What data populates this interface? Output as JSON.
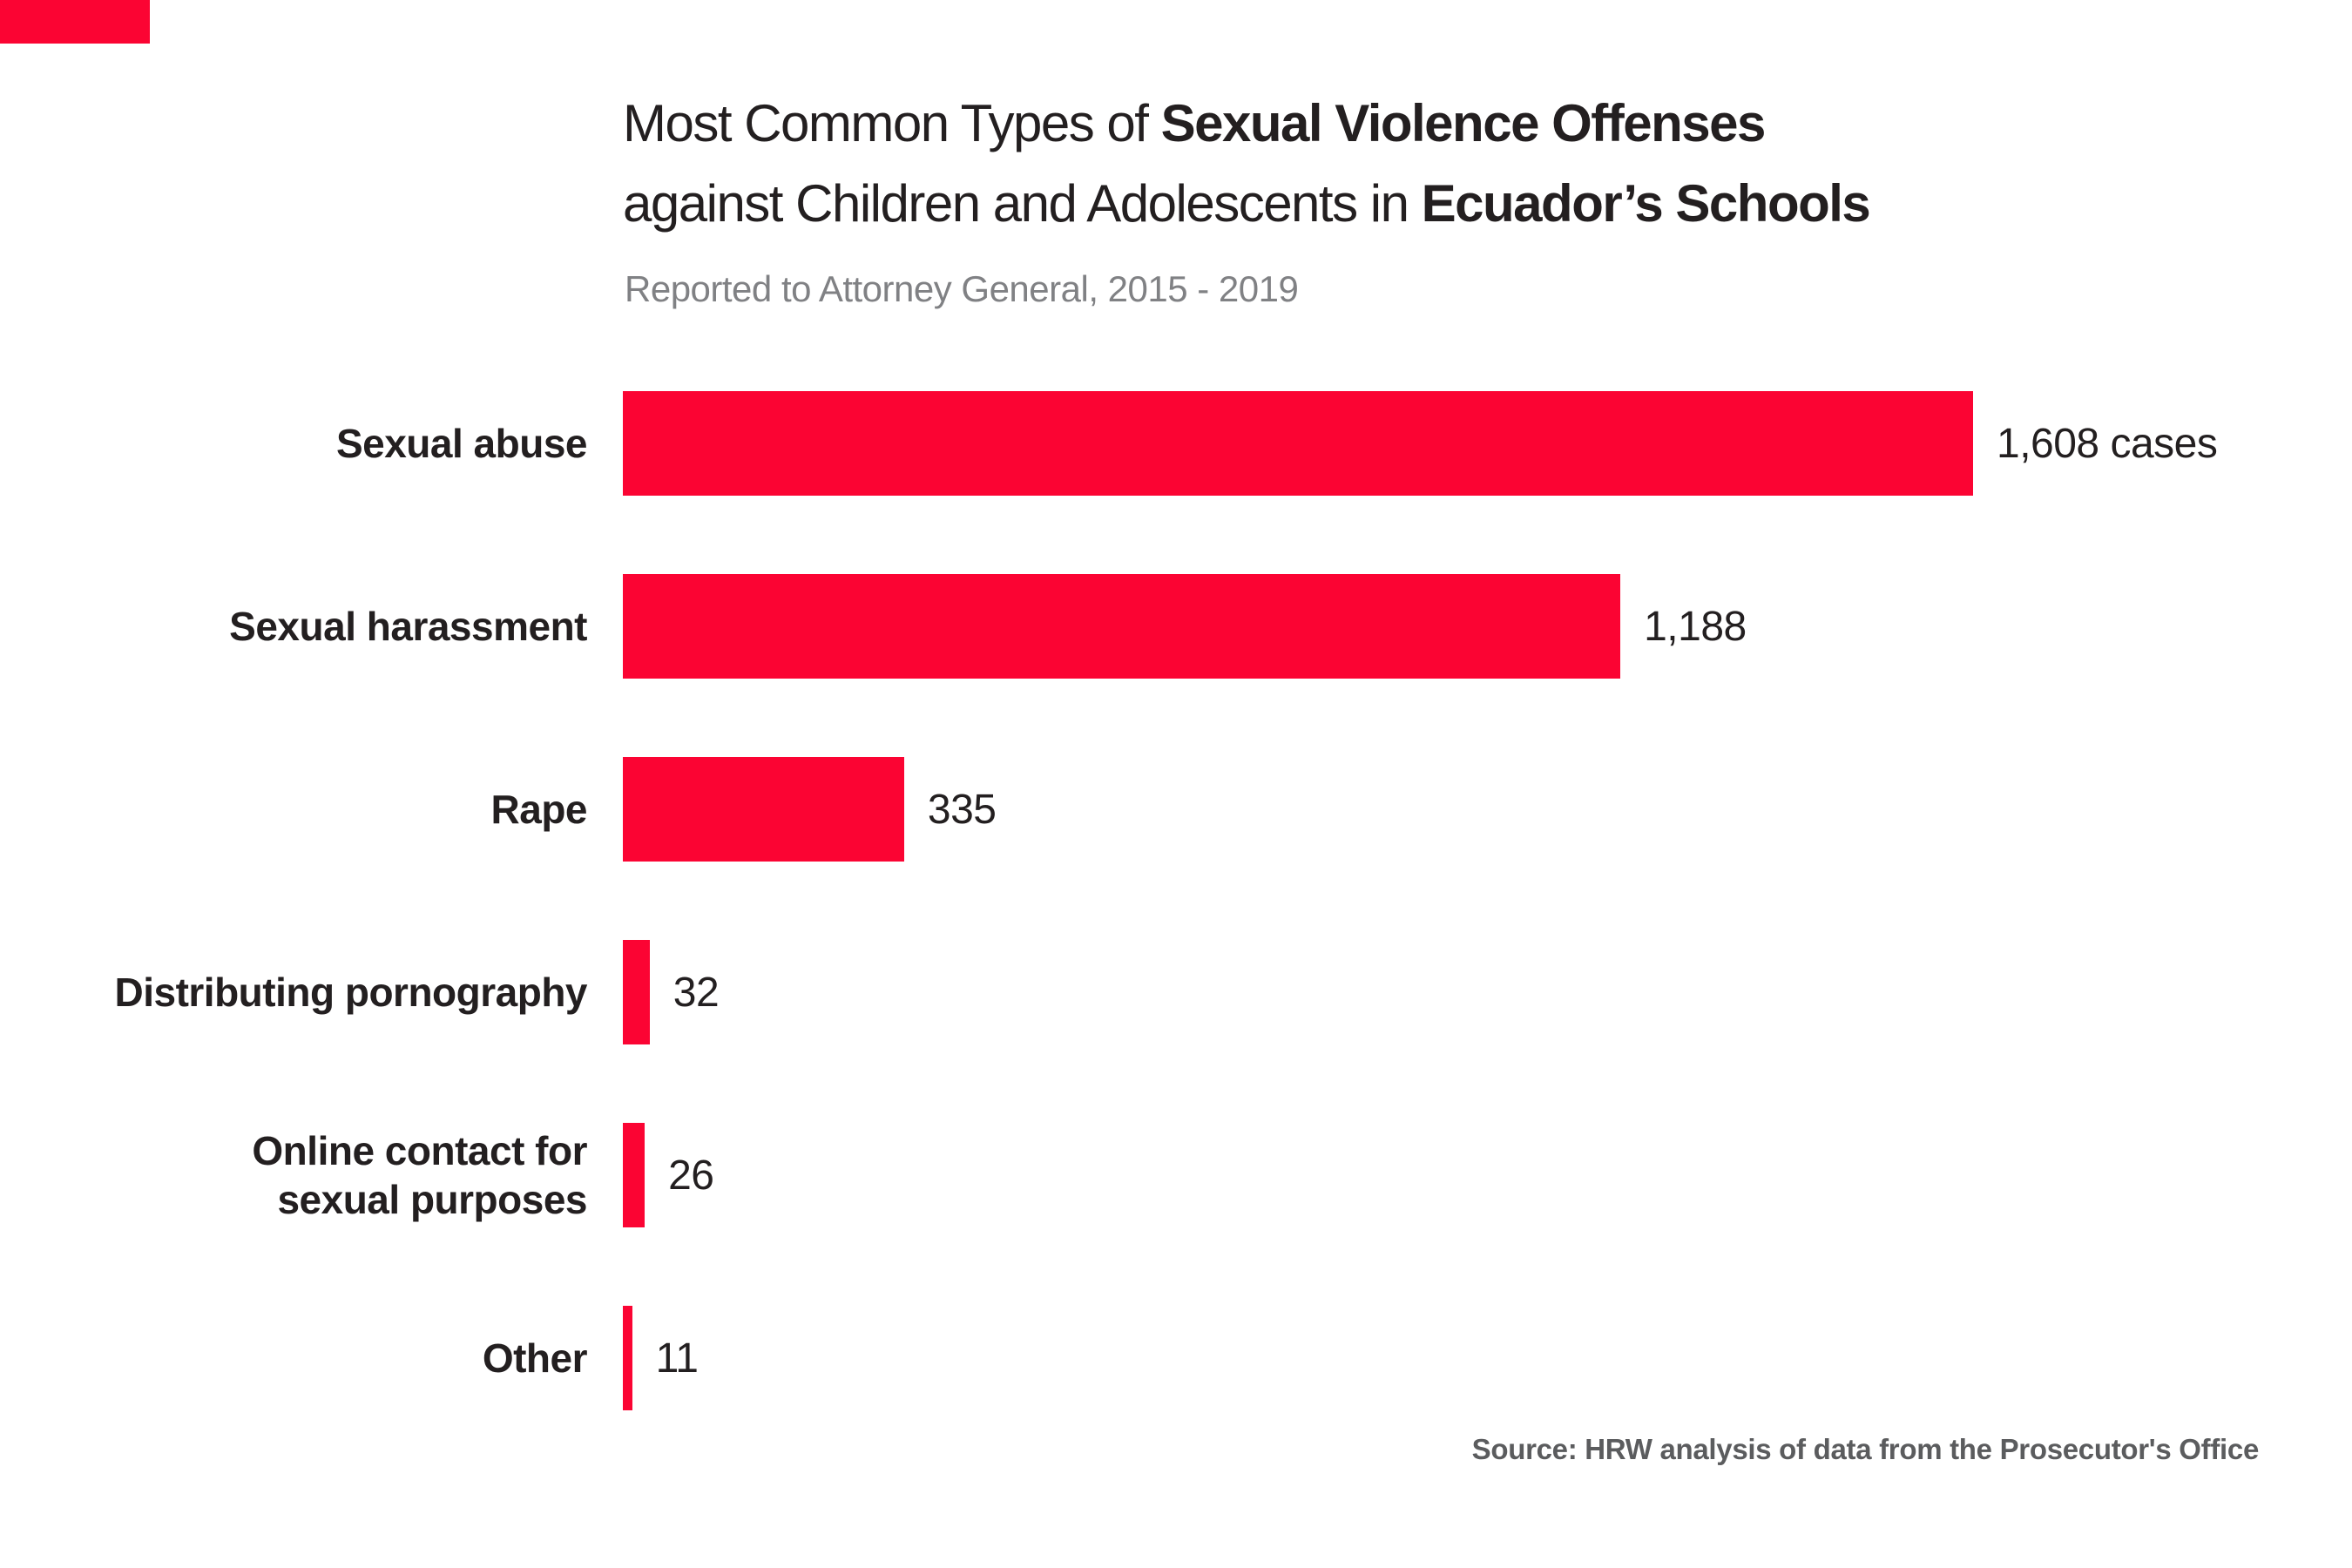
{
  "brand": {
    "logo_color": "#fb0433"
  },
  "header": {
    "title_line1_regular": "Most Common Types of ",
    "title_line1_bold": "Sexual Violence Offenses",
    "title_line2_regular": "against Children and Adolescents in ",
    "title_line2_bold": "Ecuador’s Schools",
    "subtitle": "Reported to Attorney General, 2015 - 2019"
  },
  "chart_data": {
    "type": "bar",
    "orientation": "horizontal",
    "title": "Most Common Types of Sexual Violence Offenses against Children and Adolescents in Ecuador’s Schools",
    "subtitle": "Reported to Attorney General, 2015 - 2019",
    "categories": [
      "Sexual abuse",
      "Sexual harassment",
      "Rape",
      "Distributing pornography",
      "Online contact for sexual purposes",
      "Other"
    ],
    "label_lines": [
      [
        "Sexual abuse"
      ],
      [
        "Sexual harassment"
      ],
      [
        "Rape"
      ],
      [
        "Distributing pornography"
      ],
      [
        "Online contact for",
        "sexual purposes"
      ],
      [
        "Other"
      ]
    ],
    "values": [
      1608,
      1188,
      335,
      32,
      26,
      11
    ],
    "value_labels": [
      "1,608 cases",
      "1,188",
      "335",
      "32",
      "26",
      "11"
    ],
    "unit": "cases",
    "bar_color": "#fb0433",
    "xlim": [
      0,
      1608
    ],
    "grid": false,
    "legend": false
  },
  "source": "Source: HRW analysis of data from the Prosecutor's Office"
}
